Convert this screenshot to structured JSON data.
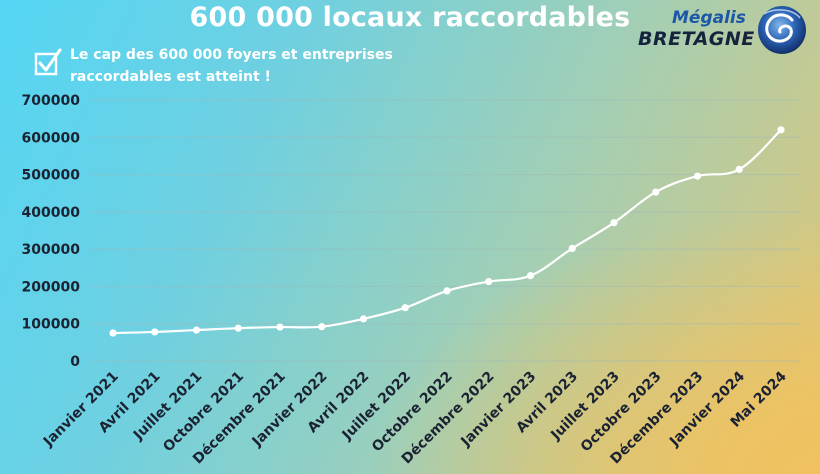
{
  "header": {
    "title": "600 000 locaux raccordables",
    "note": "Le cap des 600 000 foyers et entreprises raccordables est atteint !"
  },
  "logo": {
    "line1": "Mégalis",
    "line2": "BRETAGNE"
  },
  "icons": {
    "check": "check-box-icon",
    "emblem": "megalis-emblem-icon"
  },
  "colors": {
    "line": "#ffffff",
    "text": "#1b2333",
    "grid": "#9fb8b8"
  },
  "chart_data": {
    "type": "line",
    "title": "600 000 locaux raccordables",
    "categories": [
      "Janvier 2021",
      "Avril 2021",
      "Juillet 2021",
      "Octobre 2021",
      "Décembre 2021",
      "Janvier 2022",
      "Avril 2022",
      "Juillet 2022",
      "Octobre 2022",
      "Décembre 2022",
      "Janvier 2023",
      "Avril 2023",
      "Juillet 2023",
      "Octobre 2023",
      "Décembre 2023",
      "Janvier 2024",
      "Mai 2024"
    ],
    "values": [
      75000,
      78000,
      83000,
      88000,
      91000,
      92000,
      113000,
      143000,
      188000,
      213000,
      229000,
      302000,
      371000,
      453000,
      496000,
      514000,
      620000
    ],
    "ylim": [
      0,
      700000
    ],
    "yticks": [
      "700000",
      "600000",
      "500000",
      "400000",
      "300000",
      "200000",
      "100000",
      "0"
    ],
    "ytick_values": [
      700000,
      600000,
      500000,
      400000,
      300000,
      200000,
      100000,
      0
    ],
    "grid": true,
    "legend": "none"
  }
}
